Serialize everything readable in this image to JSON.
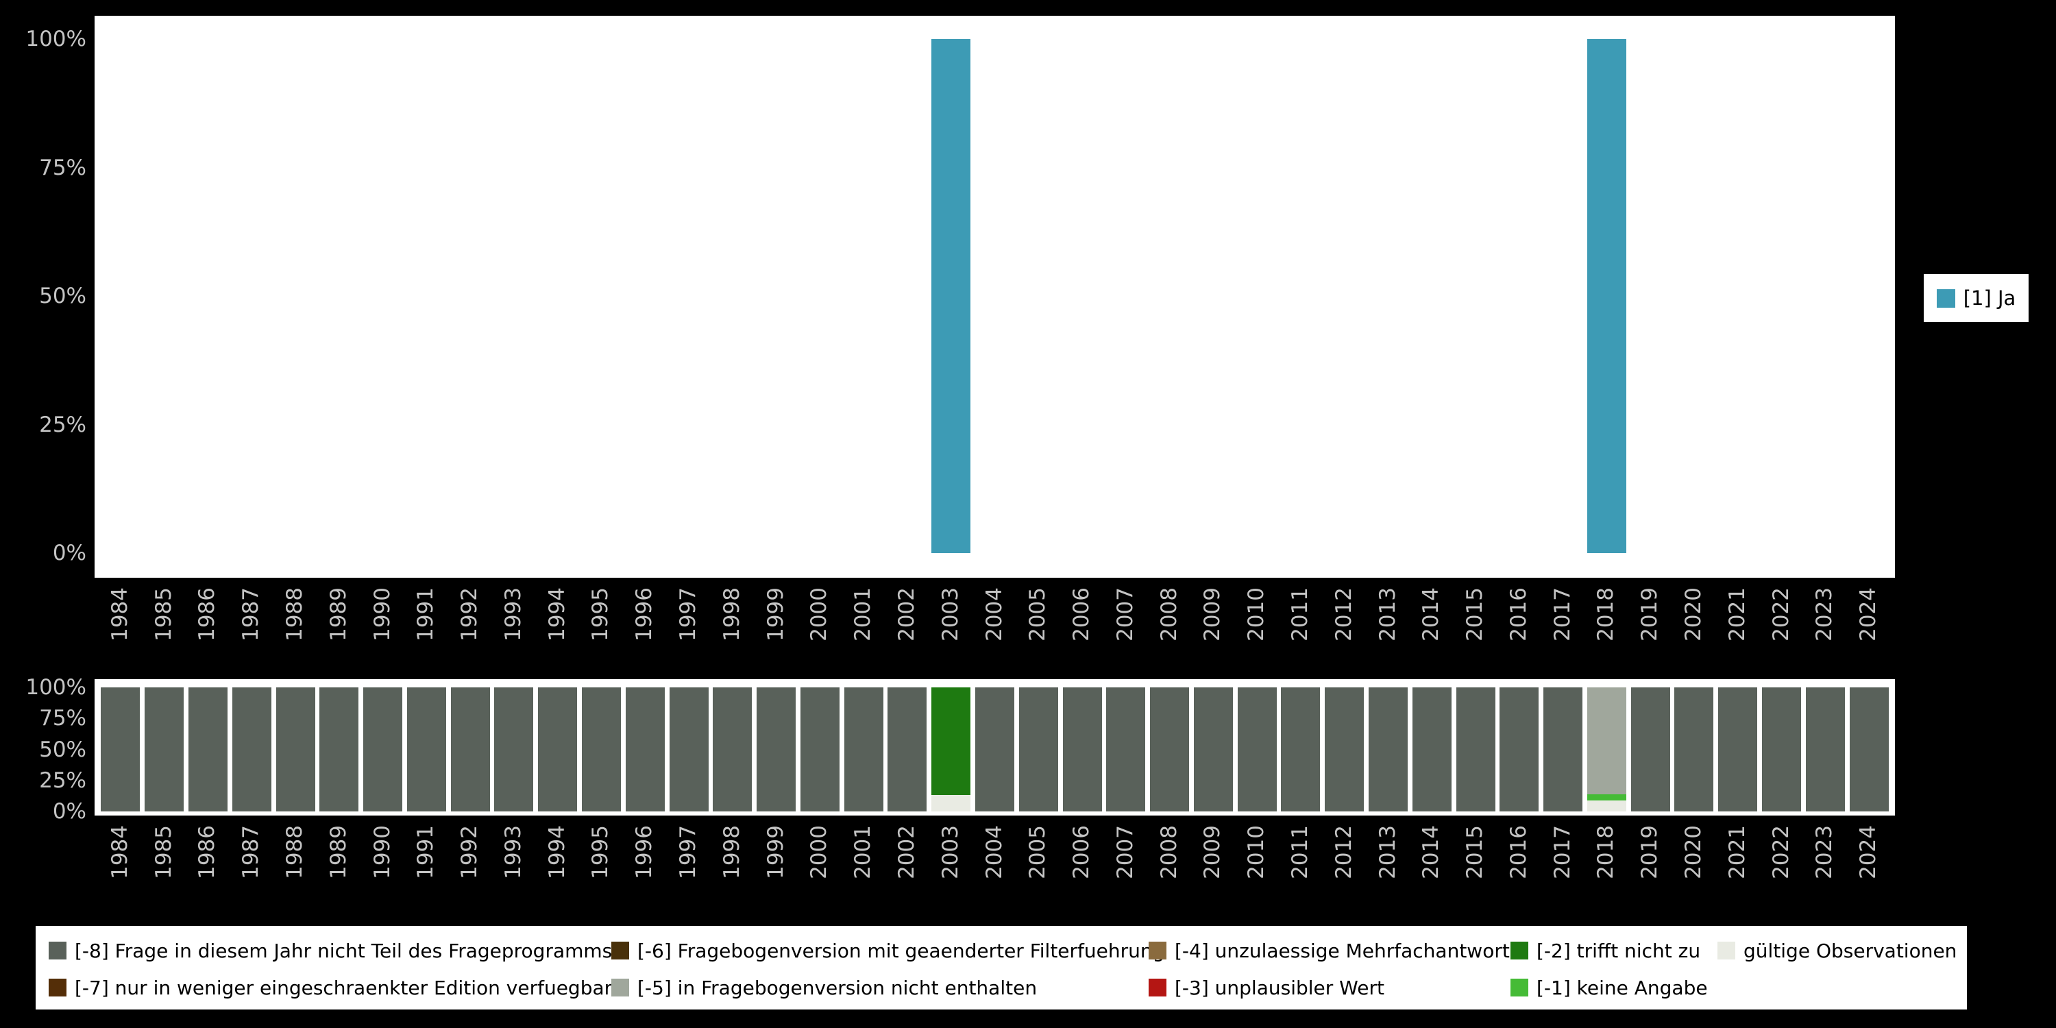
{
  "page": {
    "background": "#000000"
  },
  "axis": {
    "yticks": [
      "100%",
      "75%",
      "50%",
      "25%",
      "0%"
    ],
    "tick_color": "#c4c4c4"
  },
  "codes": {
    "ja": {
      "label": "[1] Ja",
      "color": "#3d9bb5"
    },
    "m8": {
      "label": "[-8] Frage in diesem Jahr nicht Teil des Frageprogramms",
      "color": "#59615a"
    },
    "m7": {
      "label": "[-7] nur in weniger eingeschraenkter Edition verfuegbar",
      "color": "#542e08"
    },
    "m6": {
      "label": "[-6] Fragebogenversion mit geaenderter Filterfuehrung",
      "color": "#49310b"
    },
    "m5": {
      "label": "[-5] in Fragebogenversion nicht enthalten",
      "color": "#a0a79c"
    },
    "m4": {
      "label": "[-4] unzulaessige Mehrfachantwort",
      "color": "#8a6b3e"
    },
    "m3": {
      "label": "[-3] unplausibler Wert",
      "color": "#b41613"
    },
    "m2": {
      "label": "[-2] trifft nicht zu",
      "color": "#1e7a11"
    },
    "m1": {
      "label": "[-1] keine Angabe",
      "color": "#45bb36"
    },
    "valid": {
      "label": "gültige Observationen",
      "color": "#e9ebe3"
    }
  },
  "legend_right": {
    "items": [
      {
        "key": "ja"
      }
    ]
  },
  "legend_bottom": {
    "rows": [
      [
        "m8",
        "m6",
        "m4",
        "m2",
        "valid"
      ],
      [
        "m7",
        "m5",
        "m3",
        "m1"
      ]
    ]
  },
  "chart_data": [
    {
      "type": "bar",
      "stacked": false,
      "legend_position": "right",
      "ylim": [
        0,
        100
      ],
      "yticks": [
        "100%",
        "75%",
        "50%",
        "25%",
        "0%"
      ],
      "categories": [
        "1984",
        "1985",
        "1986",
        "1987",
        "1988",
        "1989",
        "1990",
        "1991",
        "1992",
        "1993",
        "1994",
        "1995",
        "1996",
        "1997",
        "1998",
        "1999",
        "2000",
        "2001",
        "2002",
        "2003",
        "2004",
        "2005",
        "2006",
        "2007",
        "2008",
        "2009",
        "2010",
        "2011",
        "2012",
        "2013",
        "2014",
        "2015",
        "2016",
        "2017",
        "2018",
        "2019",
        "2020",
        "2021",
        "2022",
        "2023",
        "2024"
      ],
      "series": [
        {
          "key": "ja",
          "name": "[1] Ja",
          "color": "#3d9bb5",
          "values": [
            0,
            0,
            0,
            0,
            0,
            0,
            0,
            0,
            0,
            0,
            0,
            0,
            0,
            0,
            0,
            0,
            0,
            0,
            0,
            100,
            0,
            0,
            0,
            0,
            0,
            0,
            0,
            0,
            0,
            0,
            0,
            0,
            0,
            0,
            100,
            0,
            0,
            0,
            0,
            0,
            0
          ]
        }
      ]
    },
    {
      "type": "bar",
      "stacked": true,
      "legend_position": "bottom",
      "ylim": [
        0,
        100
      ],
      "yticks": [
        "100%",
        "75%",
        "50%",
        "25%",
        "0%"
      ],
      "categories": [
        "1984",
        "1985",
        "1986",
        "1987",
        "1988",
        "1989",
        "1990",
        "1991",
        "1992",
        "1993",
        "1994",
        "1995",
        "1996",
        "1997",
        "1998",
        "1999",
        "2000",
        "2001",
        "2002",
        "2003",
        "2004",
        "2005",
        "2006",
        "2007",
        "2008",
        "2009",
        "2010",
        "2011",
        "2012",
        "2013",
        "2014",
        "2015",
        "2016",
        "2017",
        "2018",
        "2019",
        "2020",
        "2021",
        "2022",
        "2023",
        "2024"
      ],
      "series": [
        {
          "key": "valid",
          "name": "gültige Observationen",
          "color": "#e9ebe3",
          "values": [
            0,
            0,
            0,
            0,
            0,
            0,
            0,
            0,
            0,
            0,
            0,
            0,
            0,
            0,
            0,
            0,
            0,
            0,
            0,
            13,
            0,
            0,
            0,
            0,
            0,
            0,
            0,
            0,
            0,
            0,
            0,
            0,
            0,
            0,
            9,
            0,
            0,
            0,
            0,
            0,
            0
          ]
        },
        {
          "key": "m1",
          "name": "[-1] keine Angabe",
          "color": "#45bb36",
          "values": [
            0,
            0,
            0,
            0,
            0,
            0,
            0,
            0,
            0,
            0,
            0,
            0,
            0,
            0,
            0,
            0,
            0,
            0,
            0,
            0,
            0,
            0,
            0,
            0,
            0,
            0,
            0,
            0,
            0,
            0,
            0,
            0,
            0,
            0,
            5,
            0,
            0,
            0,
            0,
            0,
            0
          ]
        },
        {
          "key": "m2",
          "name": "[-2] trifft nicht zu",
          "color": "#1e7a11",
          "values": [
            0,
            0,
            0,
            0,
            0,
            0,
            0,
            0,
            0,
            0,
            0,
            0,
            0,
            0,
            0,
            0,
            0,
            0,
            0,
            87,
            0,
            0,
            0,
            0,
            0,
            0,
            0,
            0,
            0,
            0,
            0,
            0,
            0,
            0,
            0,
            0,
            0,
            0,
            0,
            0,
            0
          ]
        },
        {
          "key": "m3",
          "name": "[-3] unplausibler Wert",
          "color": "#b41613",
          "values": [
            0,
            0,
            0,
            0,
            0,
            0,
            0,
            0,
            0,
            0,
            0,
            0,
            0,
            0,
            0,
            0,
            0,
            0,
            0,
            0,
            0,
            0,
            0,
            0,
            0,
            0,
            0,
            0,
            0,
            0,
            0,
            0,
            0,
            0,
            0,
            0,
            0,
            0,
            0,
            0,
            0
          ]
        },
        {
          "key": "m4",
          "name": "[-4] unzulaessige Mehrfachantwort",
          "color": "#8a6b3e",
          "values": [
            0,
            0,
            0,
            0,
            0,
            0,
            0,
            0,
            0,
            0,
            0,
            0,
            0,
            0,
            0,
            0,
            0,
            0,
            0,
            0,
            0,
            0,
            0,
            0,
            0,
            0,
            0,
            0,
            0,
            0,
            0,
            0,
            0,
            0,
            0,
            0,
            0,
            0,
            0,
            0,
            0
          ]
        },
        {
          "key": "m5",
          "name": "[-5] in Fragebogenversion nicht enthalten",
          "color": "#a0a79c",
          "values": [
            0,
            0,
            0,
            0,
            0,
            0,
            0,
            0,
            0,
            0,
            0,
            0,
            0,
            0,
            0,
            0,
            0,
            0,
            0,
            0,
            0,
            0,
            0,
            0,
            0,
            0,
            0,
            0,
            0,
            0,
            0,
            0,
            0,
            0,
            86,
            0,
            0,
            0,
            0,
            0,
            0
          ]
        },
        {
          "key": "m6",
          "name": "[-6] Fragebogenversion mit geaenderter Filterfuehrung",
          "color": "#49310b",
          "values": [
            0,
            0,
            0,
            0,
            0,
            0,
            0,
            0,
            0,
            0,
            0,
            0,
            0,
            0,
            0,
            0,
            0,
            0,
            0,
            0,
            0,
            0,
            0,
            0,
            0,
            0,
            0,
            0,
            0,
            0,
            0,
            0,
            0,
            0,
            0,
            0,
            0,
            0,
            0,
            0,
            0
          ]
        },
        {
          "key": "m7",
          "name": "[-7] nur in weniger eingeschraenkter Edition verfuegbar",
          "color": "#542e08",
          "values": [
            0,
            0,
            0,
            0,
            0,
            0,
            0,
            0,
            0,
            0,
            0,
            0,
            0,
            0,
            0,
            0,
            0,
            0,
            0,
            0,
            0,
            0,
            0,
            0,
            0,
            0,
            0,
            0,
            0,
            0,
            0,
            0,
            0,
            0,
            0,
            0,
            0,
            0,
            0,
            0,
            0
          ]
        },
        {
          "key": "m8",
          "name": "[-8] Frage in diesem Jahr nicht Teil des Frageprogramms",
          "color": "#59615a",
          "values": [
            100,
            100,
            100,
            100,
            100,
            100,
            100,
            100,
            100,
            100,
            100,
            100,
            100,
            100,
            100,
            100,
            100,
            100,
            100,
            0,
            100,
            100,
            100,
            100,
            100,
            100,
            100,
            100,
            100,
            100,
            100,
            100,
            100,
            100,
            0,
            100,
            100,
            100,
            100,
            100,
            100
          ]
        }
      ]
    }
  ]
}
